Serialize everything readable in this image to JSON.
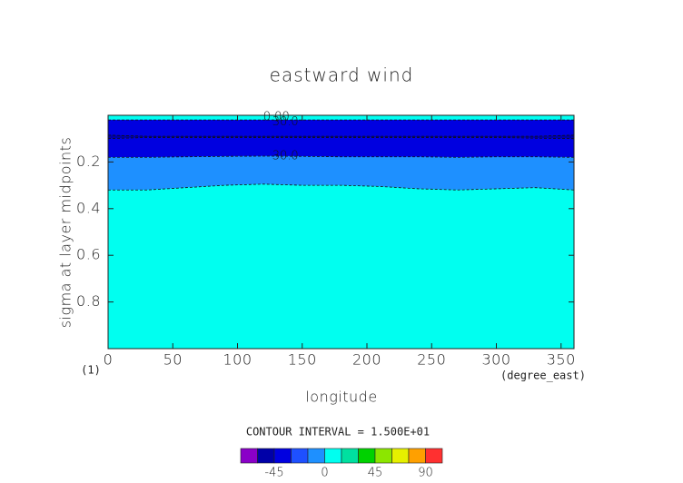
{
  "chart_data": {
    "type": "contour",
    "title": "eastward wind",
    "x_label": "longitude",
    "y_label": "sigma at layer midpoints",
    "x_unit": "(degree_east)",
    "y_unit": "(1)",
    "contour_interval": "CONTOUR INTERVAL = 1.500E+01",
    "xlim": [
      0,
      360
    ],
    "ylim": [
      0,
      1
    ],
    "y_reversed": true,
    "xticks": [
      0,
      50,
      100,
      150,
      200,
      250,
      300,
      350
    ],
    "yticks": [
      0.2,
      0.4,
      0.6,
      0.8
    ],
    "x": [
      0,
      30,
      60,
      90,
      120,
      150,
      180,
      210,
      240,
      270,
      300,
      330,
      360
    ],
    "layers": [
      {
        "level": 0,
        "bottom": [
          0.02,
          0.02,
          0.02,
          0.02,
          0.02,
          0.02,
          0.02,
          0.02,
          0.02,
          0.02,
          0.02,
          0.02,
          0.02
        ]
      },
      {
        "level": -45,
        "bottom": [
          0.085,
          0.09,
          0.09,
          0.09,
          0.09,
          0.09,
          0.09,
          0.09,
          0.09,
          0.09,
          0.09,
          0.09,
          0.085
        ]
      },
      {
        "level": -60,
        "bottom": [
          0.1,
          0.095,
          0.095,
          0.095,
          0.095,
          0.095,
          0.095,
          0.095,
          0.095,
          0.095,
          0.095,
          0.098,
          0.1
        ]
      },
      {
        "level": -45,
        "bottom": [
          0.18,
          0.18,
          0.178,
          0.176,
          0.175,
          0.176,
          0.178,
          0.178,
          0.178,
          0.18,
          0.178,
          0.178,
          0.18
        ]
      },
      {
        "level": -15,
        "bottom": [
          0.32,
          0.32,
          0.31,
          0.3,
          0.295,
          0.3,
          0.3,
          0.305,
          0.315,
          0.32,
          0.315,
          0.31,
          0.32
        ]
      },
      {
        "level": 0,
        "bottom": [
          1,
          1,
          1,
          1,
          1,
          1,
          1,
          1,
          1,
          1,
          1,
          1,
          1
        ]
      }
    ],
    "annotations": [
      {
        "text": "0.00",
        "x": 130,
        "y": 0.008
      },
      {
        "text": "30.0",
        "x": 137,
        "y": 0.03
      },
      {
        "text": "30.0",
        "x": 137,
        "y": 0.175
      }
    ],
    "colorbar": {
      "levels": [
        -75,
        -60,
        -45,
        -30,
        -15,
        0,
        15,
        30,
        45,
        60,
        75,
        90,
        105
      ],
      "colors": [
        "#8a00c8",
        "#0000a8",
        "#0000e0",
        "#1e50ff",
        "#1e90ff",
        "#00fff0",
        "#00e0a0",
        "#00d200",
        "#8ce600",
        "#e6f000",
        "#ffa000",
        "#ff3030"
      ],
      "ticks": [
        -45,
        0,
        45,
        90
      ]
    }
  }
}
